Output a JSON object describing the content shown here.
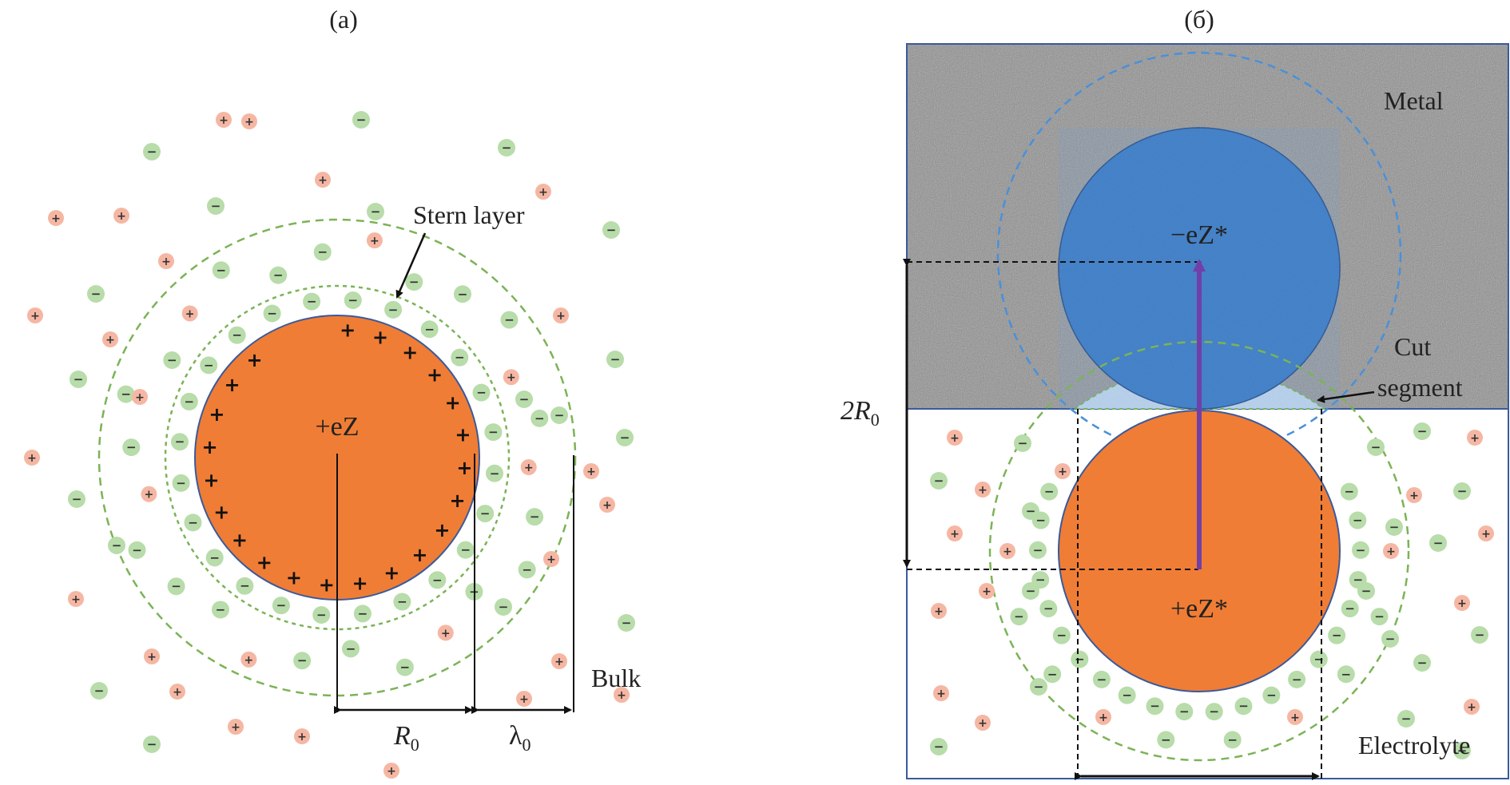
{
  "panel_a": {
    "label": "(a)",
    "particle_charge": "+eZ",
    "stern_layer_label": "Stern layer",
    "bulk_label": "Bulk",
    "radius_label": "R",
    "radius_sub": "0",
    "debye_label": "λ",
    "debye_sub": "0"
  },
  "panel_b": {
    "label": "(б)",
    "metal_label": "Metal",
    "electrolyte_label": "Electrolyte",
    "image_charge": "−eZ*",
    "particle_charge": "+eZ*",
    "cut_segment_line1": "Cut",
    "cut_segment_line2": "segment",
    "distance_label": "2R",
    "distance_sub": "0"
  },
  "ion_signs": {
    "cation": "+",
    "anion": "−",
    "surface_charge": "+"
  },
  "colors": {
    "particle": "#f07d35",
    "image_particle": "#3e7cc4",
    "cation_fill": "#f5b7a3",
    "anion_fill": "#b8dcaa",
    "stern_dashed": "#7cb356",
    "image_dashed": "#4a90d9",
    "arrow": "#7040a8",
    "metal": "#8f8f8f",
    "cut_segment": "#c5d8ec"
  }
}
